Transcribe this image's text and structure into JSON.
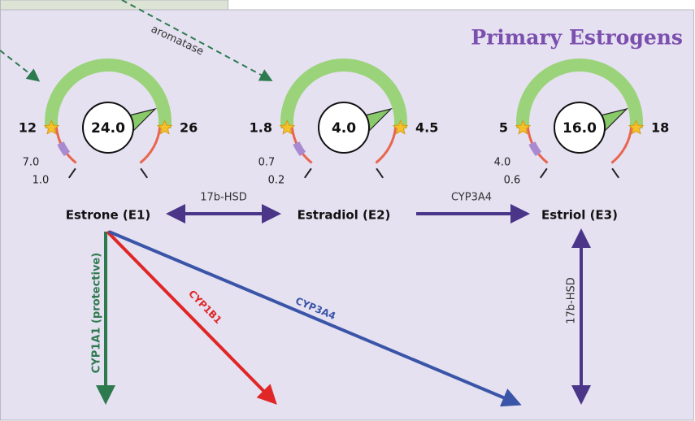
{
  "title": "Primary Estrogens",
  "gauges": [
    {
      "name": "Estrone (E1)",
      "value": "24.0",
      "low": "12",
      "high": "26",
      "min_high": "7.0",
      "min_low": "1.0"
    },
    {
      "name": "Estradiol (E2)",
      "value": "4.0",
      "low": "1.8",
      "high": "4.5",
      "min_high": "0.7",
      "min_low": "0.2"
    },
    {
      "name": "Estriol (E3)",
      "value": "16.0",
      "low": "5",
      "high": "18",
      "min_high": "4.0",
      "min_low": "0.6"
    }
  ],
  "arrows": {
    "aromatase": "aromatase",
    "e1_e2": "17b-HSD",
    "e2_e3": "CYP3A4",
    "cyp1a1": "CYP1A1 (protective)",
    "cyp1b1": "CYP1B1",
    "cyp3a4": "CYP3A4",
    "e3_hsd": "17b-HSD"
  }
}
